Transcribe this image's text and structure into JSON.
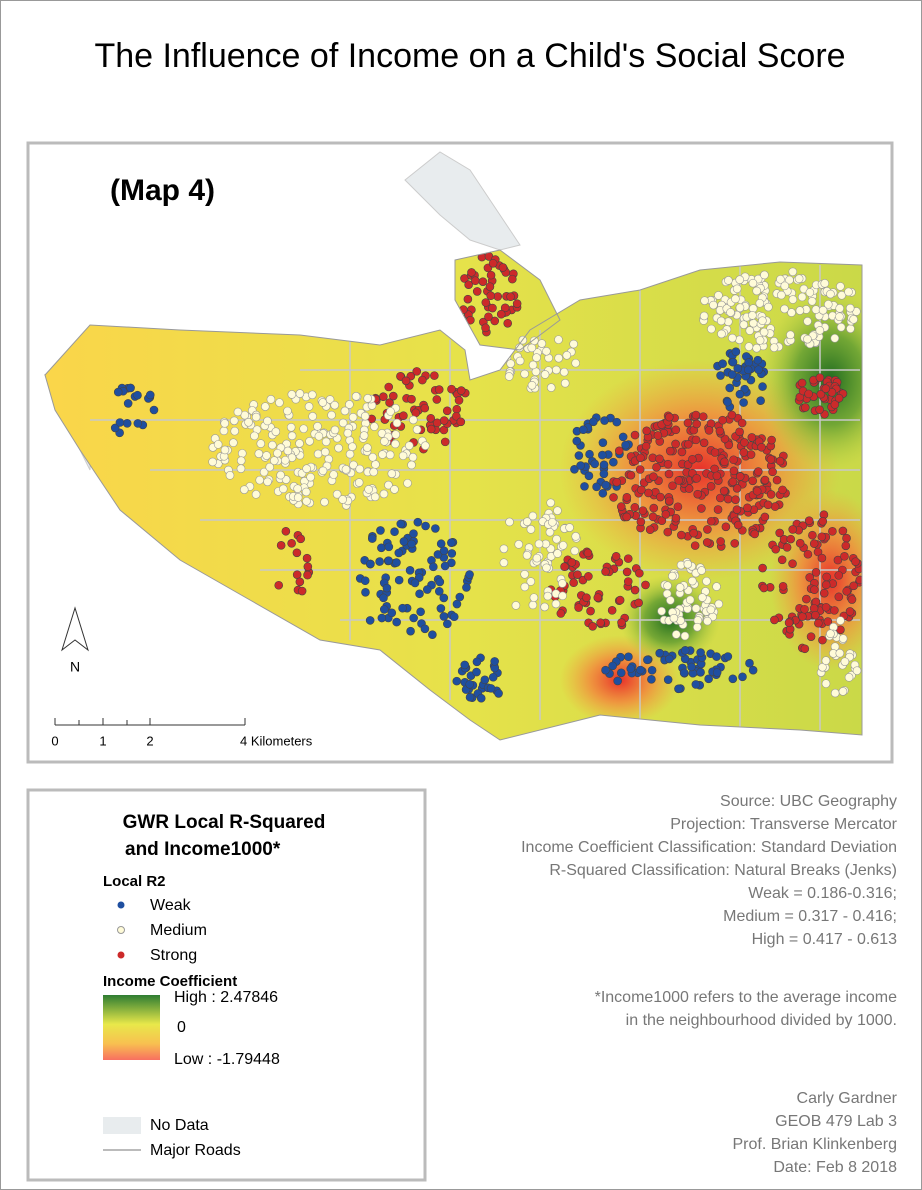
{
  "title": "The Influence of Income on a Child's Social Score",
  "map": {
    "label": "(Map 4)",
    "north": "N",
    "scale_labels": [
      "0",
      "1",
      "2",
      "4 Kilometers"
    ]
  },
  "legend": {
    "title_lines": [
      "GWR Local R-Squared",
      " and Income1000*"
    ],
    "r2_heading": "Local R2",
    "r2_classes": [
      "Weak",
      "Medium",
      "Strong"
    ],
    "coef_heading": "Income Coefficient",
    "coef_labels": [
      "High : 2.47846",
      "0",
      "Low : -1.79448"
    ],
    "no_data": "No Data",
    "roads": "Major Roads"
  },
  "info": [
    "Source: UBC Geography",
    "Projection: Transverse Mercator",
    "Income Coefficient Classification: Standard Deviation",
    "R-Squared Classification: Natural Breaks (Jenks)",
    "Weak = 0.186-0.316;",
    "Medium = 0.317 - 0.416;",
    "High = 0.417 - 0.613"
  ],
  "note": [
    "*Income1000 refers to the average income",
    "in the neighbourhood divided by 1000."
  ],
  "credits": [
    "Carly Gardner",
    "GEOB 479 Lab 3",
    "Prof. Brian Klinkenberg",
    "Date: Feb 8 2018"
  ]
}
